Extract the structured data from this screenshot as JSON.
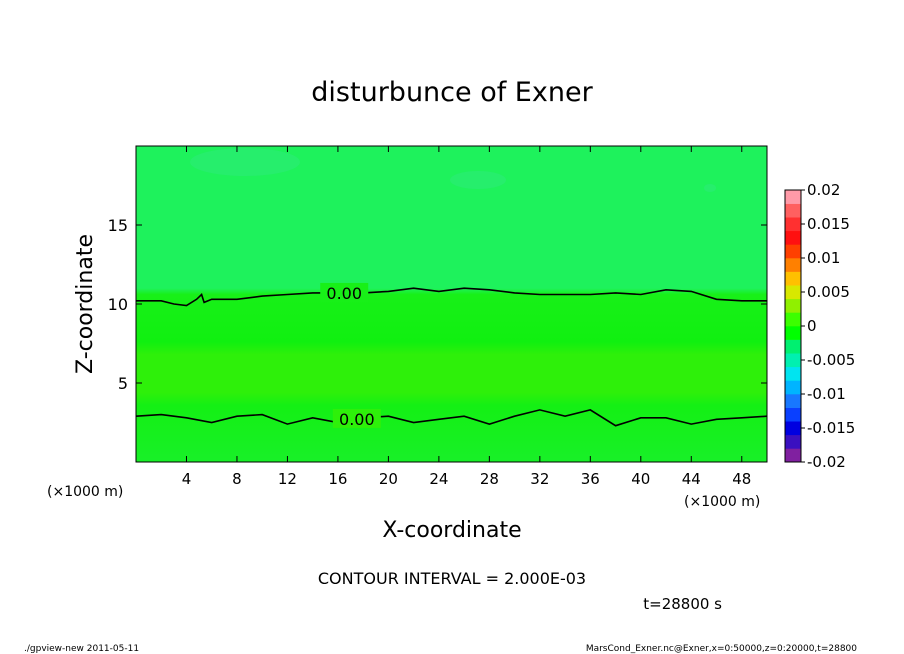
{
  "chart_data": {
    "type": "heatmap",
    "title": "disturbunce of Exner",
    "xlabel": "X-coordinate",
    "ylabel": "Z-coordinate",
    "x_unit": "(×1000 m)",
    "y_unit": "(×1000 m)",
    "x_unit_note": "(×1000 m)",
    "xlim": [
      0,
      50
    ],
    "ylim": [
      0,
      20
    ],
    "x_ticks": [
      4,
      8,
      12,
      16,
      20,
      24,
      28,
      32,
      36,
      40,
      44,
      48
    ],
    "y_ticks": [
      5,
      10,
      15
    ],
    "colorbar": {
      "ticks": [
        "0.02",
        "0.015",
        "0.01",
        "0.005",
        "0",
        "-0.005",
        "-0.01",
        "-0.015",
        "-0.02"
      ],
      "min": -0.02,
      "max": 0.02,
      "colors": [
        "#8020a0",
        "#3a10c0",
        "#0000e0",
        "#0a40ff",
        "#1878ff",
        "#00b4ff",
        "#00e4f0",
        "#00f0b0",
        "#00f070",
        "#00ff00",
        "#3cff00",
        "#90f000",
        "#d8e800",
        "#ffc000",
        "#ff8000",
        "#ff4000",
        "#ff1010",
        "#ff3030",
        "#ff6060",
        "#ff9aa8"
      ]
    },
    "contours": [
      {
        "label": "0.00",
        "points": [
          [
            0,
            10.2
          ],
          [
            2,
            10.2
          ],
          [
            3,
            10
          ],
          [
            4,
            9.9
          ],
          [
            4.8,
            10.3
          ],
          [
            5.2,
            10.6
          ],
          [
            5.4,
            10.1
          ],
          [
            6,
            10.3
          ],
          [
            8,
            10.3
          ],
          [
            10,
            10.5
          ],
          [
            12,
            10.6
          ],
          [
            14,
            10.7
          ],
          [
            16,
            10.7
          ],
          [
            18,
            10.7
          ],
          [
            20,
            10.8
          ],
          [
            22,
            11
          ],
          [
            24,
            10.8
          ],
          [
            26,
            11
          ],
          [
            28,
            10.9
          ],
          [
            30,
            10.7
          ],
          [
            32,
            10.6
          ],
          [
            34,
            10.6
          ],
          [
            36,
            10.6
          ],
          [
            38,
            10.7
          ],
          [
            40,
            10.6
          ],
          [
            42,
            10.9
          ],
          [
            44,
            10.8
          ],
          [
            46,
            10.3
          ],
          [
            48,
            10.2
          ],
          [
            50,
            10.2
          ]
        ]
      },
      {
        "label": "0.00",
        "points": [
          [
            0,
            2.9
          ],
          [
            2,
            3
          ],
          [
            4,
            2.8
          ],
          [
            6,
            2.5
          ],
          [
            8,
            2.9
          ],
          [
            10,
            3
          ],
          [
            12,
            2.4
          ],
          [
            14,
            2.8
          ],
          [
            16,
            2.5
          ],
          [
            18,
            2.8
          ],
          [
            20,
            2.9
          ],
          [
            22,
            2.5
          ],
          [
            24,
            2.7
          ],
          [
            26,
            2.9
          ],
          [
            28,
            2.4
          ],
          [
            30,
            2.9
          ],
          [
            32,
            3.3
          ],
          [
            34,
            2.9
          ],
          [
            36,
            3.3
          ],
          [
            38,
            2.3
          ],
          [
            40,
            2.8
          ],
          [
            42,
            2.8
          ],
          [
            44,
            2.4
          ],
          [
            46,
            2.7
          ],
          [
            48,
            2.8
          ],
          [
            50,
            2.9
          ]
        ]
      }
    ],
    "note_interval": "CONTOUR INTERVAL = 2.000E-03",
    "note_time": "t=28800 s"
  },
  "footer": {
    "left": "./gpview-new  2011-05-11",
    "right": "MarsCond_Exner.nc@Exner,x=0:50000,z=0:20000,t=28800"
  }
}
